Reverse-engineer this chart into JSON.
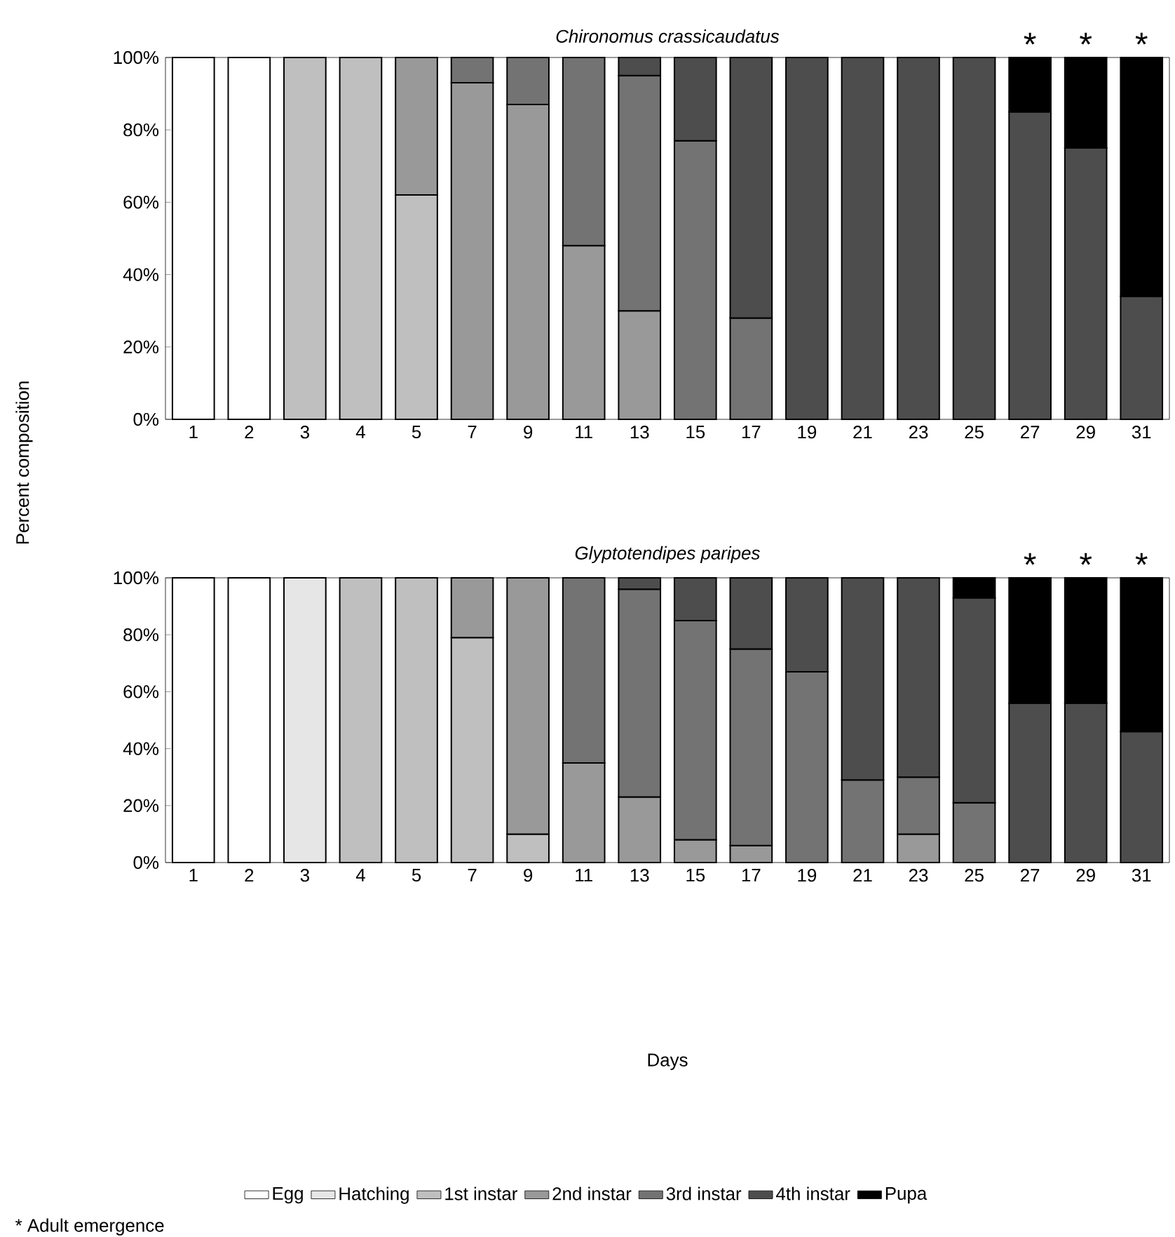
{
  "chart_data": [
    {
      "type": "bar",
      "stacked": true,
      "title": "Chironomus crassicaudatus",
      "ylabel": "Percent composition",
      "categories": [
        "1",
        "2",
        "3",
        "4",
        "5",
        "7",
        "9",
        "11",
        "13",
        "15",
        "17",
        "19",
        "21",
        "23",
        "25",
        "27",
        "29",
        "31"
      ],
      "series": [
        {
          "color": "#ffffff",
          "values": [
            100,
            100,
            0,
            0,
            0,
            0,
            0,
            0,
            0,
            0,
            0,
            0,
            0,
            0,
            0,
            0,
            0,
            0
          ]
        },
        {
          "color": "#e6e6e6",
          "values": [
            0,
            0,
            0,
            0,
            0,
            0,
            0,
            0,
            0,
            0,
            0,
            0,
            0,
            0,
            0,
            0,
            0,
            0
          ]
        },
        {
          "color": "#bfbfbf",
          "values": [
            0,
            0,
            100,
            100,
            62,
            0,
            0,
            0,
            0,
            0,
            0,
            0,
            0,
            0,
            0,
            0,
            0,
            0
          ]
        },
        {
          "color": "#999999",
          "values": [
            0,
            0,
            0,
            0,
            38,
            93,
            87,
            48,
            30,
            0,
            0,
            0,
            0,
            0,
            0,
            0,
            0,
            0
          ]
        },
        {
          "color": "#737373",
          "values": [
            0,
            0,
            0,
            0,
            0,
            7,
            13,
            52,
            65,
            77,
            28,
            0,
            0,
            0,
            0,
            0,
            0,
            0
          ]
        },
        {
          "color": "#4d4d4d",
          "values": [
            0,
            0,
            0,
            0,
            0,
            0,
            0,
            0,
            5,
            23,
            72,
            100,
            100,
            100,
            100,
            85,
            75,
            34
          ]
        },
        {
          "color": "#000000",
          "values": [
            0,
            0,
            0,
            0,
            0,
            0,
            0,
            0,
            0,
            0,
            0,
            0,
            0,
            0,
            0,
            15,
            25,
            66
          ]
        }
      ],
      "ylim": [
        0,
        100
      ],
      "yticks": [
        {
          "value": 0,
          "label": "0%"
        },
        {
          "value": 20,
          "label": "20%"
        },
        {
          "value": 40,
          "label": "40%"
        },
        {
          "value": 60,
          "label": "60%"
        },
        {
          "value": 80,
          "label": "80%"
        },
        {
          "value": 100,
          "label": "100%"
        }
      ],
      "annotations": [
        "*",
        "*",
        "*"
      ]
    },
    {
      "type": "bar",
      "stacked": true,
      "title": "Glyptotendipes paripes",
      "xlabel": "Days",
      "legend": "bottom",
      "categories": [
        "1",
        "2",
        "3",
        "4",
        "5",
        "7",
        "9",
        "11",
        "13",
        "15",
        "17",
        "19",
        "21",
        "23",
        "25",
        "27",
        "29",
        "31"
      ],
      "series": [
        {
          "name": "Egg",
          "color": "#ffffff",
          "values": [
            100,
            100,
            0,
            0,
            0,
            0,
            0,
            0,
            0,
            0,
            0,
            0,
            0,
            0,
            0,
            0,
            0,
            0
          ]
        },
        {
          "name": "Hatching",
          "color": "#e6e6e6",
          "values": [
            0,
            0,
            100,
            0,
            0,
            0,
            0,
            0,
            0,
            0,
            0,
            0,
            0,
            0,
            0,
            0,
            0,
            0
          ]
        },
        {
          "name": "1st instar",
          "color": "#bfbfbf",
          "values": [
            0,
            0,
            0,
            100,
            100,
            79,
            10,
            0,
            0,
            0,
            0,
            0,
            0,
            0,
            0,
            0,
            0,
            0
          ]
        },
        {
          "name": "2nd instar",
          "color": "#999999",
          "values": [
            0,
            0,
            0,
            0,
            0,
            21,
            90,
            35,
            23,
            8,
            6,
            0,
            0,
            10,
            0,
            0,
            0,
            0
          ]
        },
        {
          "name": "3rd instar",
          "color": "#737373",
          "values": [
            0,
            0,
            0,
            0,
            0,
            0,
            0,
            65,
            73,
            77,
            69,
            67,
            29,
            20,
            21,
            0,
            0,
            0
          ]
        },
        {
          "name": "4th instar",
          "color": "#4d4d4d",
          "values": [
            0,
            0,
            0,
            0,
            0,
            0,
            0,
            0,
            4,
            15,
            25,
            33,
            71,
            70,
            72,
            56,
            56,
            46
          ]
        },
        {
          "name": "Pupa",
          "color": "#000000",
          "values": [
            0,
            0,
            0,
            0,
            0,
            0,
            0,
            0,
            0,
            0,
            0,
            0,
            0,
            0,
            7,
            44,
            44,
            54
          ]
        }
      ],
      "ylim": [
        0,
        100
      ],
      "yticks": [
        {
          "value": 0,
          "label": "0%"
        },
        {
          "value": 20,
          "label": "20%"
        },
        {
          "value": 40,
          "label": "40%"
        },
        {
          "value": 60,
          "label": "60%"
        },
        {
          "value": 80,
          "label": "80%"
        },
        {
          "value": 100,
          "label": "100%"
        }
      ],
      "annotations": [
        "*",
        "*",
        "*",
        "* Adult emergence"
      ]
    }
  ]
}
